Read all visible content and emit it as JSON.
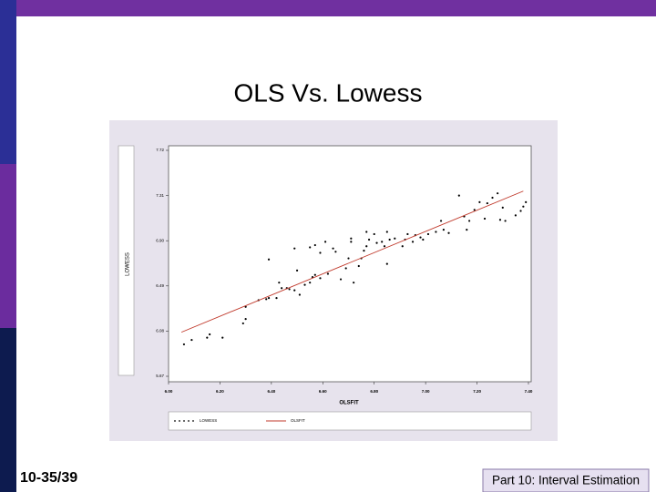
{
  "slide": {
    "title": "OLS Vs. Lowess",
    "page_number": "10-35/39",
    "footer": "Part 10: Interval Estimation"
  },
  "chart_data": {
    "type": "scatter",
    "x_label": "OLSFIT",
    "y_label": "LOWESS",
    "xlim": [
      6.0,
      7.4
    ],
    "ylim": [
      5.67,
      7.72
    ],
    "xticks": [
      {
        "value": 6.0,
        "label": "6.00"
      },
      {
        "value": 6.2,
        "label": "6.20"
      },
      {
        "value": 6.4,
        "label": "6.40"
      },
      {
        "value": 6.6,
        "label": "6.60"
      },
      {
        "value": 6.8,
        "label": "6.80"
      },
      {
        "value": 7.0,
        "label": "7.00"
      },
      {
        "value": 7.2,
        "label": "7.20"
      },
      {
        "value": 7.4,
        "label": "7.40"
      }
    ],
    "yticks": [
      5.67,
      6.08,
      6.49,
      {
        "value": 6.9,
        "label": "6.90"
      },
      7.31,
      7.72
    ],
    "series": [
      {
        "name": "LOWESS",
        "color": "#000000",
        "style": "points",
        "x": [
          6.06,
          6.09,
          6.15,
          6.21,
          6.16,
          6.29,
          6.3,
          6.3,
          6.35,
          6.38,
          6.39,
          6.42,
          6.39,
          6.44,
          6.46,
          6.47,
          6.49,
          6.43,
          6.51,
          6.53,
          6.55,
          6.56,
          6.57,
          6.59,
          6.5,
          6.49,
          6.55,
          6.57,
          6.59,
          6.61,
          6.62,
          6.64,
          6.65,
          6.67,
          6.69,
          6.7,
          6.71,
          6.71,
          6.72,
          6.74,
          6.75,
          6.76,
          6.77,
          6.78,
          6.77,
          6.8,
          6.81,
          6.83,
          6.84,
          6.85,
          6.85,
          6.86,
          6.88,
          6.91,
          6.92,
          6.93,
          6.95,
          6.96,
          6.98,
          6.99,
          7.01,
          7.04,
          7.06,
          7.07,
          7.09,
          7.13,
          7.15,
          7.16,
          7.17,
          7.19,
          7.21,
          7.23,
          7.24,
          7.26,
          7.28,
          7.29,
          7.3,
          7.31,
          7.35,
          7.37,
          7.38,
          7.39
        ],
        "values": [
          5.96,
          6.0,
          6.02,
          6.02,
          6.05,
          6.15,
          6.19,
          6.3,
          6.36,
          6.37,
          6.38,
          6.38,
          6.73,
          6.47,
          6.47,
          6.46,
          6.45,
          6.52,
          6.41,
          6.5,
          6.52,
          6.57,
          6.59,
          6.56,
          6.63,
          6.83,
          6.84,
          6.86,
          6.79,
          6.89,
          6.6,
          6.83,
          6.8,
          6.55,
          6.65,
          6.74,
          6.89,
          6.92,
          6.52,
          6.67,
          6.74,
          6.81,
          6.85,
          6.91,
          6.98,
          6.96,
          6.88,
          6.89,
          6.85,
          6.98,
          6.69,
          6.91,
          6.92,
          6.85,
          6.91,
          6.96,
          6.89,
          6.95,
          6.93,
          6.91,
          6.96,
          6.98,
          7.08,
          7.0,
          6.97,
          7.31,
          7.12,
          7.0,
          7.08,
          7.18,
          7.25,
          7.1,
          7.24,
          7.29,
          7.33,
          7.09,
          7.2,
          7.08,
          7.13,
          7.17,
          7.21,
          7.25
        ]
      },
      {
        "name": "OLSFIT",
        "color": "#c0392b",
        "style": "line",
        "x": [
          6.05,
          7.38
        ],
        "values": [
          6.07,
          7.35
        ]
      }
    ]
  }
}
